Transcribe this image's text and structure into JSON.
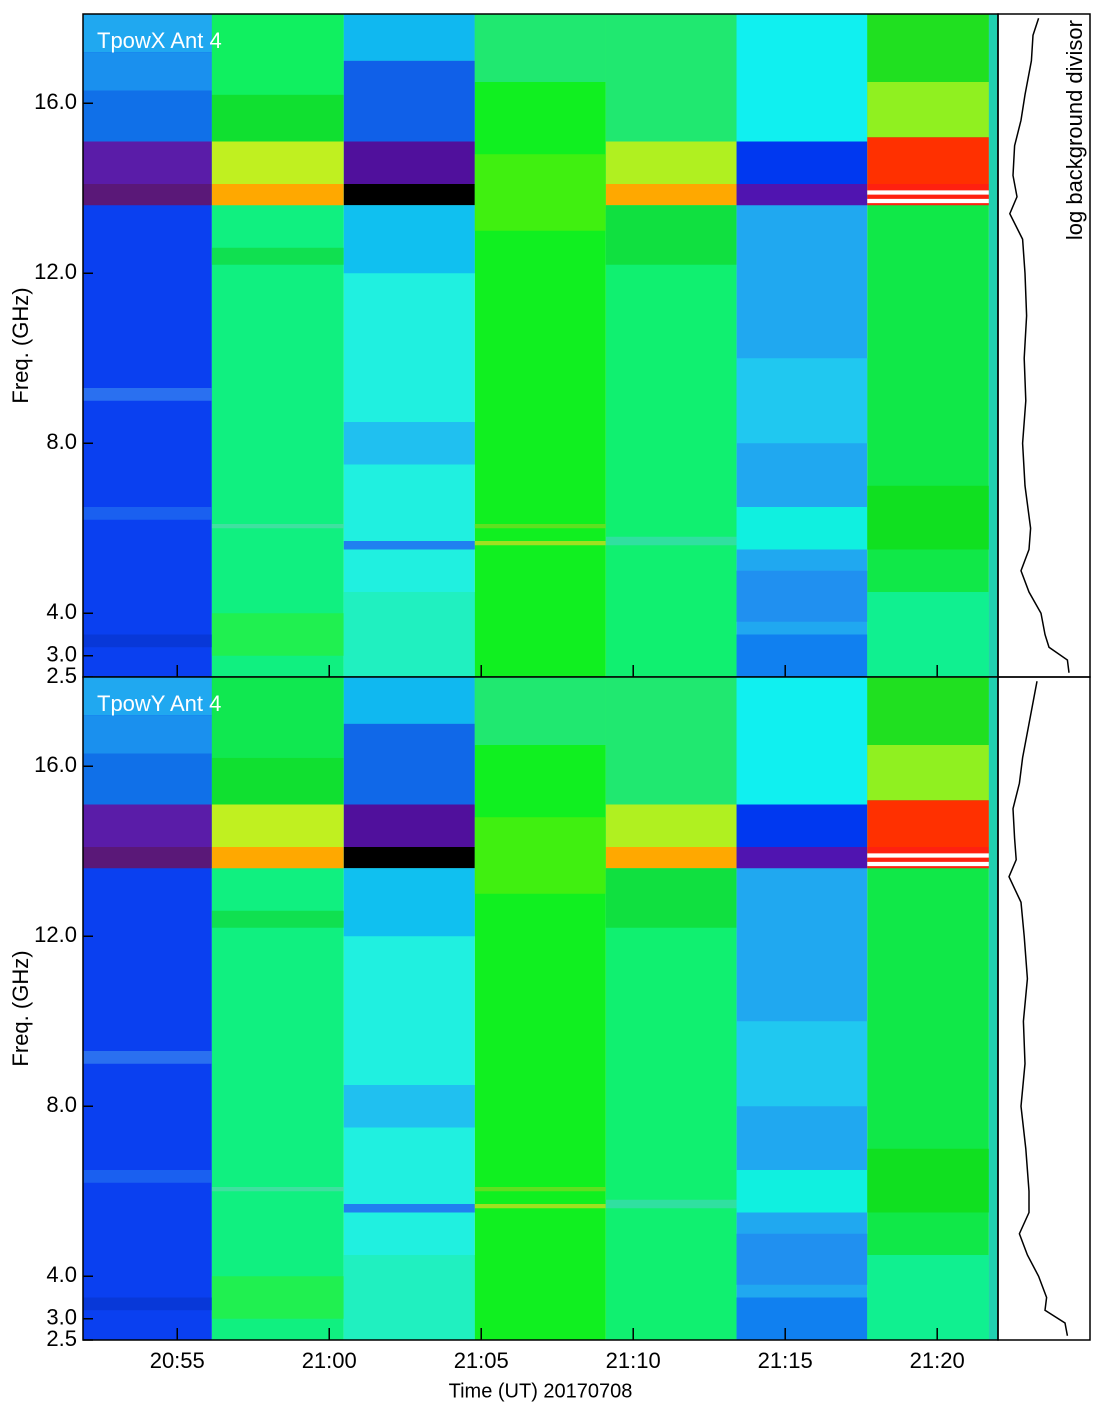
{
  "chart_data": [
    {
      "type": "heatmap",
      "title": "TpowX Ant 4",
      "ylabel": "Freq. (GHz)",
      "side_label": "log background divisor",
      "ylim": [
        2.5,
        18.1
      ],
      "yticks": [
        {
          "value": 2.5,
          "label": "2.5"
        },
        {
          "value": 3,
          "label": "3.0"
        },
        {
          "value": 4,
          "label": "4.0"
        },
        {
          "value": 8,
          "label": "8.0"
        },
        {
          "value": 12,
          "label": "12.0"
        },
        {
          "value": 16,
          "label": "16.0"
        }
      ],
      "xlim": [
        1251.9,
        1282.0
      ],
      "blocks": [
        {
          "x": [
            1251.9,
            1256.14
          ],
          "color": "#0a40f0",
          "bands": [
            {
              "f": [
                17.2,
                18.1
              ],
              "color": "#20a8f0"
            },
            {
              "f": [
                16.3,
                17.2
              ],
              "color": "#1a90ee"
            },
            {
              "f": [
                15.1,
                16.3
              ],
              "color": "#1070e8"
            },
            {
              "f": [
                14.1,
                15.1
              ],
              "color": "#5a1ca8"
            },
            {
              "f": [
                13.6,
                14.1
              ],
              "color": "#5a1878"
            },
            {
              "f": [
                3.2,
                3.5
              ],
              "color": "#0838d8"
            },
            {
              "f": [
                6.2,
                6.5
              ],
              "color": "#1a60f0"
            },
            {
              "f": [
                9.0,
                9.3
              ],
              "color": "#2a70f0"
            }
          ]
        },
        {
          "x": [
            1256.14,
            1260.48
          ],
          "color": "#10f080",
          "bands": [
            {
              "f": [
                16.2,
                18.1
              ],
              "color": "#10f060"
            },
            {
              "f": [
                15.1,
                16.2
              ],
              "color": "#10e030"
            },
            {
              "f": [
                14.1,
                15.1
              ],
              "color": "#c0f020"
            },
            {
              "f": [
                13.6,
                14.1
              ],
              "color": "#ffa800"
            },
            {
              "f": [
                12.2,
                12.6
              ],
              "color": "#10e050"
            },
            {
              "f": [
                3.0,
                4.0
              ],
              "color": "#20f050"
            },
            {
              "f": [
                6.0,
                6.1
              ],
              "color": "#40e0a0"
            }
          ]
        },
        {
          "x": [
            1260.48,
            1264.79
          ],
          "color": "#20f0e0",
          "bands": [
            {
              "f": [
                17.0,
                18.1
              ],
              "color": "#10b8f0"
            },
            {
              "f": [
                15.1,
                17.0
              ],
              "color": "#1060e8"
            },
            {
              "f": [
                14.1,
                15.1
              ],
              "color": "#50109c"
            },
            {
              "f": [
                13.6,
                14.1
              ],
              "color": "#000000"
            },
            {
              "f": [
                12.0,
                13.6
              ],
              "color": "#10c0f0"
            },
            {
              "f": [
                7.5,
                8.5
              ],
              "color": "#20c0f0"
            },
            {
              "f": [
                5.5,
                5.7
              ],
              "color": "#2080f0"
            },
            {
              "f": [
                2.5,
                4.5
              ],
              "color": "#20f0c0"
            }
          ]
        },
        {
          "x": [
            1264.79,
            1269.1
          ],
          "color": "#10f020",
          "bands": [
            {
              "f": [
                16.5,
                18.1
              ],
              "color": "#20e870"
            },
            {
              "f": [
                13.0,
                14.8
              ],
              "color": "#40f010"
            },
            {
              "f": [
                5.6,
                5.7
              ],
              "color": "#a0e020"
            },
            {
              "f": [
                6.0,
                6.1
              ],
              "color": "#60e020"
            }
          ]
        },
        {
          "x": [
            1269.1,
            1273.4
          ],
          "color": "#10f070",
          "bands": [
            {
              "f": [
                15.1,
                18.1
              ],
              "color": "#20e870"
            },
            {
              "f": [
                14.1,
                15.1
              ],
              "color": "#b0f020"
            },
            {
              "f": [
                13.6,
                14.1
              ],
              "color": "#ffa800"
            },
            {
              "f": [
                12.2,
                13.6
              ],
              "color": "#10e040"
            },
            {
              "f": [
                5.6,
                5.8
              ],
              "color": "#30e0a0"
            }
          ]
        },
        {
          "x": [
            1273.4,
            1277.7
          ],
          "color": "#20a8f0",
          "bands": [
            {
              "f": [
                15.1,
                18.1
              ],
              "color": "#10f0f0"
            },
            {
              "f": [
                14.1,
                15.1
              ],
              "color": "#0038f0"
            },
            {
              "f": [
                13.6,
                14.1
              ],
              "color": "#5014b0"
            },
            {
              "f": [
                8.0,
                10.0
              ],
              "color": "#20c8f0"
            },
            {
              "f": [
                5.5,
                6.5
              ],
              "color": "#10f0e0"
            },
            {
              "f": [
                2.5,
                3.5
              ],
              "color": "#1080f0"
            },
            {
              "f": [
                3.8,
                5.0
              ],
              "color": "#2090f0"
            }
          ]
        },
        {
          "x": [
            1277.7,
            1281.7
          ],
          "color": "#10e848",
          "bands": [
            {
              "f": [
                16.5,
                18.1
              ],
              "color": "#20e020"
            },
            {
              "f": [
                15.2,
                16.5
              ],
              "color": "#90f020"
            },
            {
              "f": [
                14.1,
                15.2
              ],
              "color": "#ff3000"
            },
            {
              "f": [
                13.6,
                14.1
              ],
              "color": "#ff2010"
            },
            {
              "f": [
                13.85,
                13.95
              ],
              "color": "#ffffff"
            },
            {
              "f": [
                13.65,
                13.75
              ],
              "color": "#ffffff"
            },
            {
              "f": [
                2.5,
                4.5
              ],
              "color": "#10f090"
            },
            {
              "f": [
                5.5,
                7.0
              ],
              "color": "#10e020"
            }
          ]
        },
        {
          "x": [
            1281.7,
            1282.0
          ],
          "color": "#20d0b0",
          "bands": []
        }
      ],
      "background": {
        "xlim": [
          0,
          1
        ],
        "freq": [
          2.6,
          2.9,
          3.2,
          3.5,
          4.0,
          4.5,
          5.0,
          5.5,
          6.0,
          7.0,
          8.0,
          9.0,
          10.0,
          11.0,
          12.0,
          12.8,
          13.4,
          13.8,
          14.3,
          15.0,
          15.6,
          16.2,
          17.0,
          17.6,
          18.0
        ],
        "values": [
          0.8,
          0.78,
          0.55,
          0.5,
          0.45,
          0.3,
          0.2,
          0.3,
          0.32,
          0.25,
          0.22,
          0.26,
          0.24,
          0.27,
          0.25,
          0.22,
          0.06,
          0.15,
          0.1,
          0.12,
          0.2,
          0.25,
          0.33,
          0.35,
          0.42
        ]
      }
    },
    {
      "type": "heatmap",
      "title": "TpowY Ant 4",
      "ylabel": "Freq. (GHz)",
      "xlabel": "Time (UT) 20170708",
      "ylim": [
        2.5,
        18.1
      ],
      "yticks": [
        {
          "value": 2.5,
          "label": "2.5"
        },
        {
          "value": 3,
          "label": "3.0"
        },
        {
          "value": 4,
          "label": "4.0"
        },
        {
          "value": 8,
          "label": "8.0"
        },
        {
          "value": 12,
          "label": "12.0"
        },
        {
          "value": 16,
          "label": "16.0"
        }
      ],
      "xlim": [
        1251.9,
        1282.0
      ],
      "xticks": [
        {
          "value": 1255,
          "label": "20:55"
        },
        {
          "value": 1260,
          "label": "21:00"
        },
        {
          "value": 1265,
          "label": "21:05"
        },
        {
          "value": 1270,
          "label": "21:10"
        },
        {
          "value": 1275,
          "label": "21:15"
        },
        {
          "value": 1280,
          "label": "21:20"
        }
      ],
      "blocks": [
        {
          "x": [
            1251.9,
            1256.14
          ],
          "color": "#0a40f0",
          "bands": [
            {
              "f": [
                17.2,
                18.1
              ],
              "color": "#20a8f0"
            },
            {
              "f": [
                16.3,
                17.2
              ],
              "color": "#1a90ee"
            },
            {
              "f": [
                15.1,
                16.3
              ],
              "color": "#1070e8"
            },
            {
              "f": [
                14.1,
                15.1
              ],
              "color": "#5a1ca8"
            },
            {
              "f": [
                13.6,
                14.1
              ],
              "color": "#5a1878"
            },
            {
              "f": [
                3.2,
                3.5
              ],
              "color": "#0838d8"
            },
            {
              "f": [
                6.2,
                6.5
              ],
              "color": "#1a60f0"
            },
            {
              "f": [
                9.0,
                9.3
              ],
              "color": "#2a70f0"
            }
          ]
        },
        {
          "x": [
            1256.14,
            1260.48
          ],
          "color": "#10f080",
          "bands": [
            {
              "f": [
                16.2,
                18.1
              ],
              "color": "#10e850"
            },
            {
              "f": [
                15.1,
                16.2
              ],
              "color": "#10e030"
            },
            {
              "f": [
                14.1,
                15.1
              ],
              "color": "#c0f020"
            },
            {
              "f": [
                13.6,
                14.1
              ],
              "color": "#ffa800"
            },
            {
              "f": [
                12.2,
                12.6
              ],
              "color": "#10e050"
            },
            {
              "f": [
                3.0,
                4.0
              ],
              "color": "#20f050"
            },
            {
              "f": [
                6.0,
                6.1
              ],
              "color": "#40e0a0"
            }
          ]
        },
        {
          "x": [
            1260.48,
            1264.79
          ],
          "color": "#20f0e0",
          "bands": [
            {
              "f": [
                17.0,
                18.1
              ],
              "color": "#10b8f0"
            },
            {
              "f": [
                15.1,
                17.0
              ],
              "color": "#1068e8"
            },
            {
              "f": [
                14.1,
                15.1
              ],
              "color": "#50109c"
            },
            {
              "f": [
                13.6,
                14.1
              ],
              "color": "#000000"
            },
            {
              "f": [
                12.0,
                13.6
              ],
              "color": "#10c0f0"
            },
            {
              "f": [
                7.5,
                8.5
              ],
              "color": "#20c0f0"
            },
            {
              "f": [
                5.5,
                5.7
              ],
              "color": "#2080f0"
            },
            {
              "f": [
                2.5,
                4.5
              ],
              "color": "#20f0c0"
            }
          ]
        },
        {
          "x": [
            1264.79,
            1269.1
          ],
          "color": "#10f020",
          "bands": [
            {
              "f": [
                16.5,
                18.1
              ],
              "color": "#20e870"
            },
            {
              "f": [
                13.0,
                14.8
              ],
              "color": "#40f010"
            },
            {
              "f": [
                5.6,
                5.7
              ],
              "color": "#a0e020"
            },
            {
              "f": [
                6.0,
                6.1
              ],
              "color": "#60e020"
            }
          ]
        },
        {
          "x": [
            1269.1,
            1273.4
          ],
          "color": "#10f070",
          "bands": [
            {
              "f": [
                15.1,
                18.1
              ],
              "color": "#20e870"
            },
            {
              "f": [
                14.1,
                15.1
              ],
              "color": "#b0f020"
            },
            {
              "f": [
                13.6,
                14.1
              ],
              "color": "#ffa800"
            },
            {
              "f": [
                12.2,
                13.6
              ],
              "color": "#10e040"
            },
            {
              "f": [
                5.6,
                5.8
              ],
              "color": "#30e0a0"
            }
          ]
        },
        {
          "x": [
            1273.4,
            1277.7
          ],
          "color": "#20a8f0",
          "bands": [
            {
              "f": [
                15.1,
                18.1
              ],
              "color": "#10f0f0"
            },
            {
              "f": [
                14.1,
                15.1
              ],
              "color": "#0038f0"
            },
            {
              "f": [
                13.6,
                14.1
              ],
              "color": "#5014b0"
            },
            {
              "f": [
                8.0,
                10.0
              ],
              "color": "#20c8f0"
            },
            {
              "f": [
                5.5,
                6.5
              ],
              "color": "#10f0e0"
            },
            {
              "f": [
                2.5,
                3.5
              ],
              "color": "#1080f0"
            },
            {
              "f": [
                3.8,
                5.0
              ],
              "color": "#2090f0"
            }
          ]
        },
        {
          "x": [
            1277.7,
            1281.7
          ],
          "color": "#10e848",
          "bands": [
            {
              "f": [
                16.5,
                18.1
              ],
              "color": "#20e020"
            },
            {
              "f": [
                15.2,
                16.5
              ],
              "color": "#90f020"
            },
            {
              "f": [
                14.1,
                15.2
              ],
              "color": "#ff3000"
            },
            {
              "f": [
                13.6,
                14.1
              ],
              "color": "#ff2010"
            },
            {
              "f": [
                13.85,
                13.95
              ],
              "color": "#ffffff"
            },
            {
              "f": [
                13.65,
                13.75
              ],
              "color": "#ffffff"
            },
            {
              "f": [
                2.5,
                4.5
              ],
              "color": "#10f090"
            },
            {
              "f": [
                5.5,
                7.0
              ],
              "color": "#10e020"
            }
          ]
        },
        {
          "x": [
            1281.7,
            1282.0
          ],
          "color": "#20d0b0",
          "bands": []
        }
      ],
      "background": {
        "xlim": [
          0,
          1
        ],
        "freq": [
          2.6,
          2.9,
          3.2,
          3.5,
          4.0,
          4.5,
          5.0,
          5.5,
          6.0,
          7.0,
          8.0,
          9.0,
          10.0,
          11.0,
          12.0,
          12.8,
          13.4,
          13.8,
          14.3,
          15.0,
          15.6,
          16.2,
          17.0,
          17.6,
          18.0
        ],
        "values": [
          0.78,
          0.75,
          0.5,
          0.52,
          0.42,
          0.28,
          0.18,
          0.3,
          0.3,
          0.26,
          0.2,
          0.25,
          0.23,
          0.28,
          0.24,
          0.2,
          0.05,
          0.14,
          0.12,
          0.1,
          0.18,
          0.22,
          0.3,
          0.36,
          0.4
        ]
      }
    }
  ]
}
